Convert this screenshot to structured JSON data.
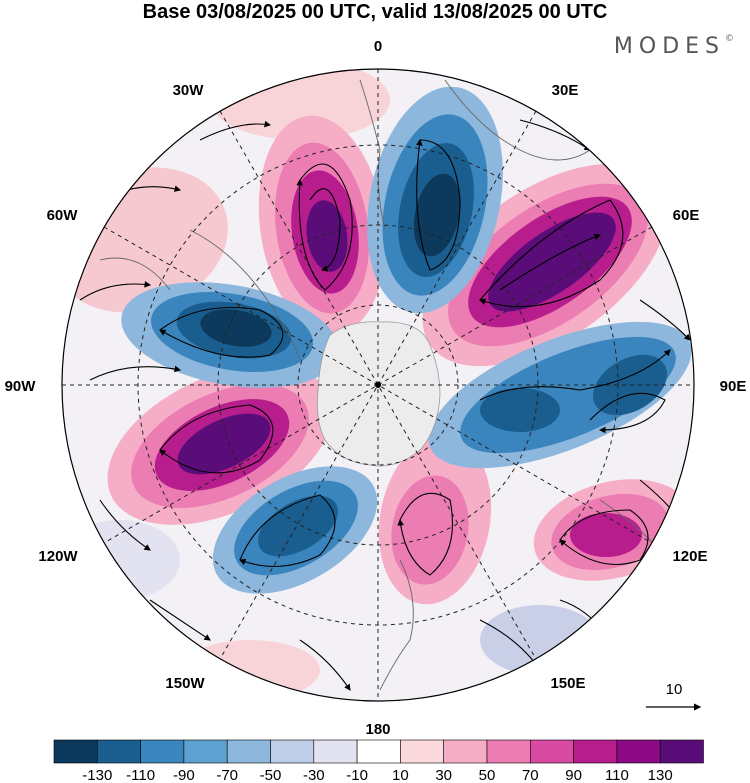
{
  "title": "Base 03/08/2025 00 UTC, valid 13/08/2025 00 UTC",
  "logo": "MODES",
  "logo_mark": "©",
  "lon_labels": {
    "l0": "0",
    "l30e": "30E",
    "l60e": "60E",
    "l90e": "90E",
    "l120e": "120E",
    "l150e": "150E",
    "l180": "180",
    "l150w": "150W",
    "l120w": "120W",
    "l90w": "90W",
    "l60w": "60W",
    "l30w": "30W"
  },
  "vector_ref_label": "10",
  "colorbar": {
    "colors": [
      "#0d3a5c",
      "#1a5e8f",
      "#3a85bd",
      "#5ea0cf",
      "#8db7dc",
      "#bfcde6",
      "#e2e2f0",
      "#ffffff",
      "#fbd9dd",
      "#f5aec6",
      "#ec7db2",
      "#d94ba3",
      "#b81d8e",
      "#8c0b85",
      "#5a0d78"
    ],
    "tick_labels": [
      "-130",
      "-110",
      "-90",
      "-70",
      "-50",
      "-30",
      "-10",
      "10",
      "30",
      "50",
      "70",
      "90",
      "110",
      "130"
    ]
  }
}
